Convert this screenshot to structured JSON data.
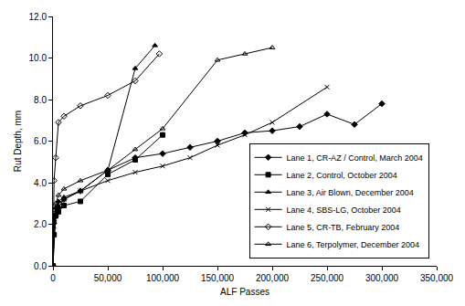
{
  "chart_data": {
    "type": "line",
    "x_label": "ALF Passes",
    "y_label": "Rut Depth, mm",
    "xlim": [
      0,
      350000
    ],
    "xticks": [
      0,
      {
        "value": 50000,
        "label": "50,000"
      },
      {
        "value": 100000,
        "label": "100,000"
      },
      {
        "value": 150000,
        "label": "150,000"
      },
      {
        "value": 200000,
        "label": "200,000"
      },
      {
        "value": 250000,
        "label": "250,000"
      },
      {
        "value": 300000,
        "label": "300,000"
      },
      {
        "value": 350000,
        "label": "350,000"
      }
    ],
    "ylim": [
      0,
      12
    ],
    "yticks": [
      {
        "value": 0,
        "label": "0.0"
      },
      {
        "value": 2,
        "label": "2.0"
      },
      {
        "value": 4,
        "label": "4.0"
      },
      {
        "value": 6,
        "label": "6.0"
      },
      {
        "value": 8,
        "label": "8.0"
      },
      {
        "value": 10,
        "label": "10.0"
      },
      {
        "value": 12,
        "label": "12.0"
      }
    ],
    "grid": false,
    "legend": "lower right",
    "series": [
      {
        "name": "Lane 1, CR-AZ / Control, March 2004",
        "color": "#000000",
        "marker": "diamond",
        "x": [
          0,
          2500,
          5000,
          10000,
          25000,
          50000,
          75000,
          100000,
          125000,
          150000,
          175000,
          200000,
          225000,
          250000,
          275000,
          300000
        ],
        "values": [
          0,
          2.4,
          2.8,
          3.2,
          3.6,
          4.6,
          5.2,
          5.4,
          5.7,
          6.0,
          6.4,
          6.5,
          6.7,
          7.3,
          6.8,
          7.8
        ]
      },
      {
        "name": "Lane 2, Control, October 2004",
        "color": "#000000",
        "marker": "square",
        "x": [
          0,
          1000,
          2500,
          5000,
          10000,
          25000,
          50000,
          75000,
          100000
        ],
        "values": [
          0,
          1.5,
          2.4,
          2.6,
          2.9,
          3.1,
          4.4,
          5.1,
          6.3
        ]
      },
      {
        "name": "Lane 3, Air Blown, December 2004",
        "color": "#000000",
        "marker": "triangle-up",
        "x": [
          0,
          1000,
          2500,
          5000,
          10000,
          25000,
          50000,
          75000,
          93000
        ],
        "values": [
          0,
          2.1,
          2.8,
          3.1,
          3.3,
          3.6,
          4.6,
          9.5,
          10.6
        ]
      },
      {
        "name": "Lane 4, SBS-LG, October 2004",
        "color": "#000000",
        "marker": "x-thin-open",
        "x": [
          0,
          1000,
          2500,
          5000,
          10000,
          25000,
          50000,
          75000,
          100000,
          125000,
          150000,
          175000,
          200000,
          250000
        ],
        "values": [
          0,
          1.9,
          2.7,
          3.0,
          3.2,
          3.6,
          4.1,
          4.5,
          4.8,
          5.2,
          5.8,
          6.3,
          6.9,
          8.6
        ]
      },
      {
        "name": "Lane 5, CR-TB, February 2004",
        "color": "#000000",
        "marker": "diamond-open",
        "x": [
          0,
          1000,
          2500,
          5000,
          10000,
          25000,
          50000,
          75000,
          97000
        ],
        "values": [
          0,
          4.1,
          5.2,
          6.9,
          7.2,
          7.7,
          8.2,
          8.9,
          10.2
        ]
      },
      {
        "name": "Lane 6, Terpolymer, December 2004",
        "color": "#000000",
        "marker": "triangle-up-open",
        "x": [
          0,
          1000,
          2500,
          5000,
          10000,
          25000,
          50000,
          75000,
          100000,
          150000,
          175000,
          200000
        ],
        "values": [
          0,
          2.2,
          3.0,
          3.4,
          3.7,
          4.1,
          4.6,
          5.6,
          6.6,
          9.9,
          10.2,
          10.5
        ]
      }
    ]
  }
}
